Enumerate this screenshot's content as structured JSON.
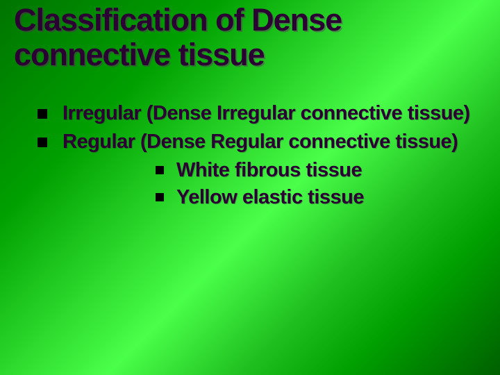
{
  "title": "Classification of Dense connective tissue",
  "bullets": [
    {
      "text": "Irregular (Dense Irregular connective tissue)"
    },
    {
      "text": "Regular  (Dense Regular connective tissue)"
    }
  ],
  "subbullets": [
    {
      "text": "White fibrous tissue"
    },
    {
      "text": "Yellow elastic tissue"
    }
  ],
  "colors": {
    "text": "#2b0033",
    "bullet": "#000000",
    "bg_start": "#007400",
    "bg_mid": "#4aff4a",
    "bg_end": "#006000"
  },
  "fontsize": {
    "title": 45,
    "body": 29
  }
}
